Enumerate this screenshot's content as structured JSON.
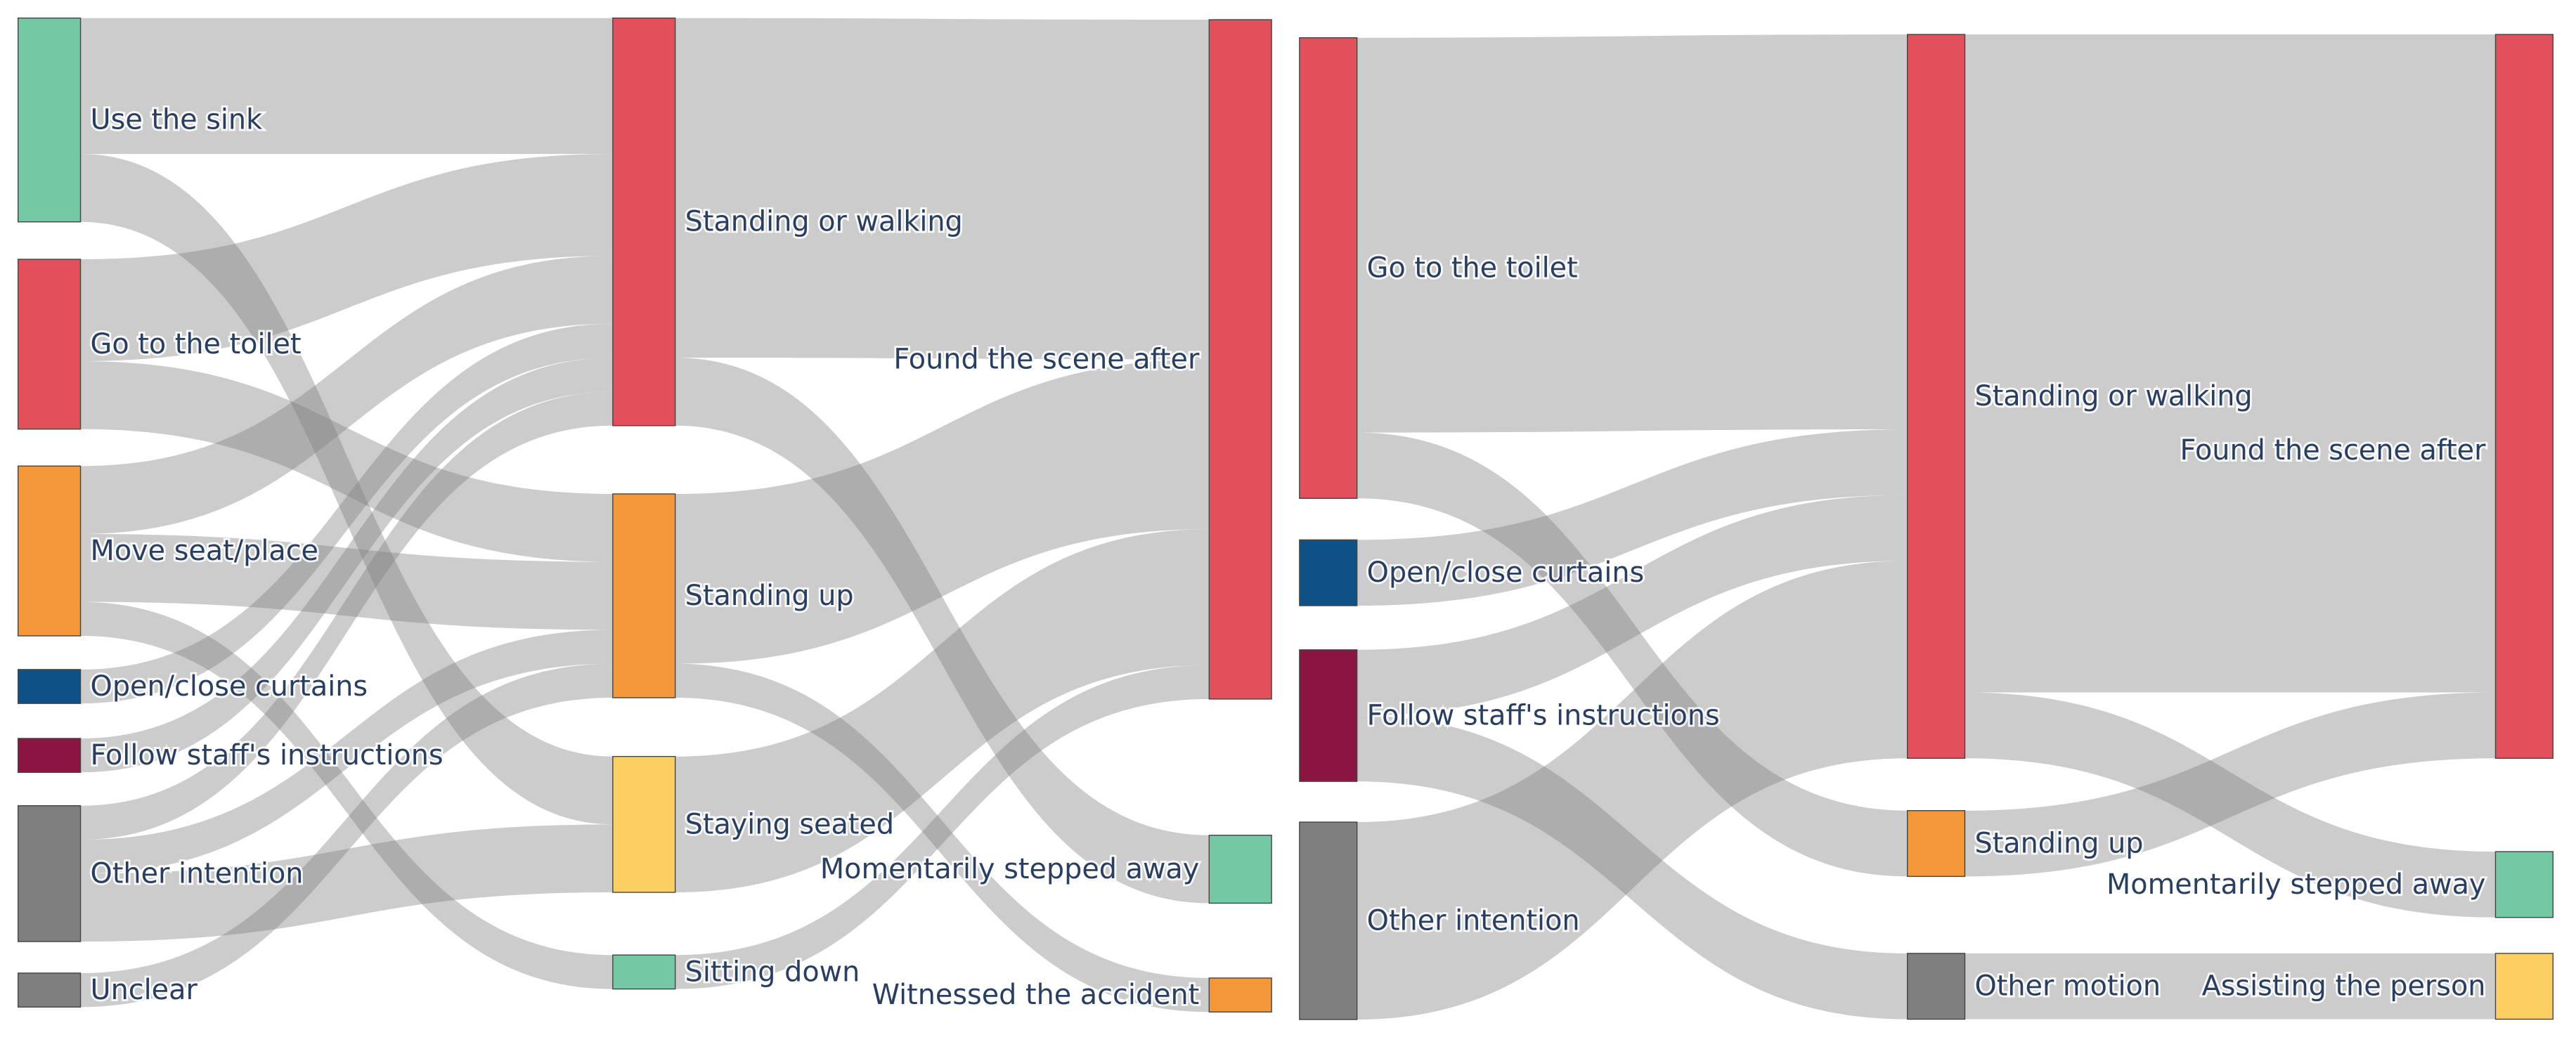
{
  "chart_data": [
    {
      "type": "sankey",
      "link_color": "#cccccc",
      "nodes": [
        {
          "label": "Use the sink",
          "color": "#74c9a4"
        },
        {
          "label": "Go to the toilet",
          "color": "#e34f5b"
        },
        {
          "label": "Move seat/place",
          "color": "#f39738"
        },
        {
          "label": "Open/close curtains",
          "color": "#0e5186"
        },
        {
          "label": "Follow staff's instructions",
          "color": "#8b1540"
        },
        {
          "label": "Other intention",
          "color": "#7f7f7f"
        },
        {
          "label": "Unclear",
          "color": "#7f7f7f"
        },
        {
          "label": "Standing or walking",
          "color": "#e34f5b"
        },
        {
          "label": "Standing up",
          "color": "#f39738"
        },
        {
          "label": "Staying seated",
          "color": "#fbcf61"
        },
        {
          "label": "Sitting down",
          "color": "#74c9a4"
        },
        {
          "label": "Found the scene after",
          "color": "#e34f5b"
        },
        {
          "label": "Momentarily stepped away",
          "color": "#74c9a4"
        },
        {
          "label": "Witnessed the accident",
          "color": "#f39738"
        }
      ],
      "links": [
        {
          "source": 0,
          "target": 7,
          "value": 4
        },
        {
          "source": 0,
          "target": 9,
          "value": 2
        },
        {
          "source": 1,
          "target": 7,
          "value": 3
        },
        {
          "source": 1,
          "target": 8,
          "value": 2
        },
        {
          "source": 2,
          "target": 7,
          "value": 2
        },
        {
          "source": 2,
          "target": 8,
          "value": 2
        },
        {
          "source": 2,
          "target": 10,
          "value": 1
        },
        {
          "source": 3,
          "target": 7,
          "value": 1
        },
        {
          "source": 4,
          "target": 7,
          "value": 1
        },
        {
          "source": 5,
          "target": 7,
          "value": 1
        },
        {
          "source": 5,
          "target": 8,
          "value": 1
        },
        {
          "source": 5,
          "target": 9,
          "value": 2
        },
        {
          "source": 6,
          "target": 8,
          "value": 1
        },
        {
          "source": 7,
          "target": 11,
          "value": 10
        },
        {
          "source": 7,
          "target": 12,
          "value": 2
        },
        {
          "source": 8,
          "target": 11,
          "value": 5
        },
        {
          "source": 8,
          "target": 13,
          "value": 1
        },
        {
          "source": 9,
          "target": 11,
          "value": 4
        },
        {
          "source": 10,
          "target": 11,
          "value": 1
        }
      ]
    },
    {
      "type": "sankey",
      "link_color": "#cccccc",
      "nodes": [
        {
          "label": "Go to the toilet",
          "color": "#e34f5b"
        },
        {
          "label": "Open/close curtains",
          "color": "#0e5186"
        },
        {
          "label": "Follow staff's instructions",
          "color": "#8b1540"
        },
        {
          "label": "Other intention",
          "color": "#7f7f7f"
        },
        {
          "label": "Standing or walking",
          "color": "#e34f5b"
        },
        {
          "label": "Standing up",
          "color": "#f39738"
        },
        {
          "label": "Other motion",
          "color": "#7f7f7f"
        },
        {
          "label": "Found the scene after",
          "color": "#e34f5b"
        },
        {
          "label": "Momentarily stepped away",
          "color": "#74c9a4"
        },
        {
          "label": "Assisting the person",
          "color": "#fbcf61"
        }
      ],
      "links": [
        {
          "source": 0,
          "target": 4,
          "value": 6
        },
        {
          "source": 0,
          "target": 5,
          "value": 1
        },
        {
          "source": 1,
          "target": 4,
          "value": 1
        },
        {
          "source": 2,
          "target": 4,
          "value": 1
        },
        {
          "source": 2,
          "target": 6,
          "value": 1
        },
        {
          "source": 3,
          "target": 4,
          "value": 3
        },
        {
          "source": 4,
          "target": 7,
          "value": 10
        },
        {
          "source": 4,
          "target": 8,
          "value": 1
        },
        {
          "source": 5,
          "target": 7,
          "value": 1
        },
        {
          "source": 6,
          "target": 9,
          "value": 1
        }
      ]
    }
  ]
}
